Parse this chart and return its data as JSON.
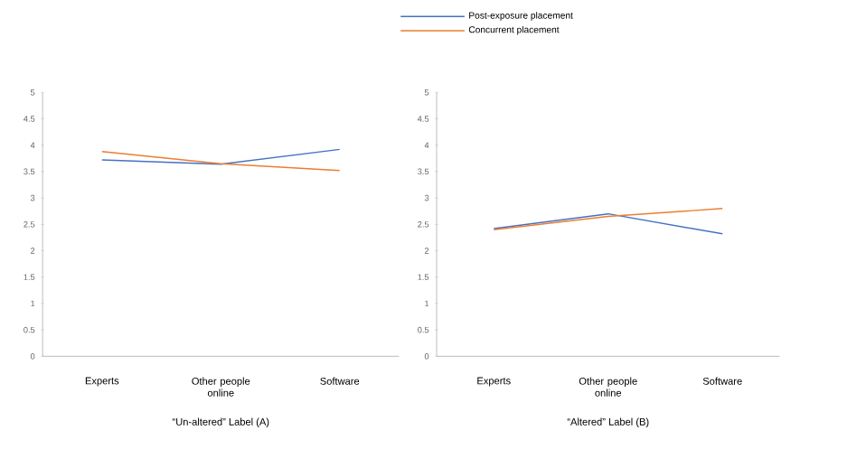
{
  "chart_data": [
    {
      "type": "line",
      "xlabel": "“Un-altered” Label (A)",
      "categories": [
        "Experts",
        "Other people online",
        "Software"
      ],
      "ylim": [
        0,
        5
      ],
      "yticks": [
        0,
        0.5,
        1,
        1.5,
        2,
        2.5,
        3,
        3.5,
        4,
        4.5,
        5
      ],
      "legend": "top",
      "grid": false,
      "marker": "none",
      "series": [
        {
          "name": "Post-exposure placement",
          "color": "#4472c4",
          "values": [
            3.72,
            3.64,
            3.92
          ]
        },
        {
          "name": "Concurrent placement",
          "color": "#ed7d31",
          "values": [
            3.88,
            3.65,
            3.52
          ]
        }
      ]
    },
    {
      "type": "line",
      "xlabel": "“Altered” Label (B)",
      "categories": [
        "Experts",
        "Other people online",
        "Software"
      ],
      "ylim": [
        0,
        5
      ],
      "yticks": [
        0,
        0.5,
        1,
        1.5,
        2,
        2.5,
        3,
        3.5,
        4,
        4.5,
        5
      ],
      "grid": false,
      "marker": "none",
      "series": [
        {
          "color": "#4472c4",
          "values": [
            2.42,
            2.7,
            2.32
          ]
        },
        {
          "color": "#ed7d31",
          "values": [
            2.4,
            2.65,
            2.8
          ]
        }
      ]
    }
  ]
}
